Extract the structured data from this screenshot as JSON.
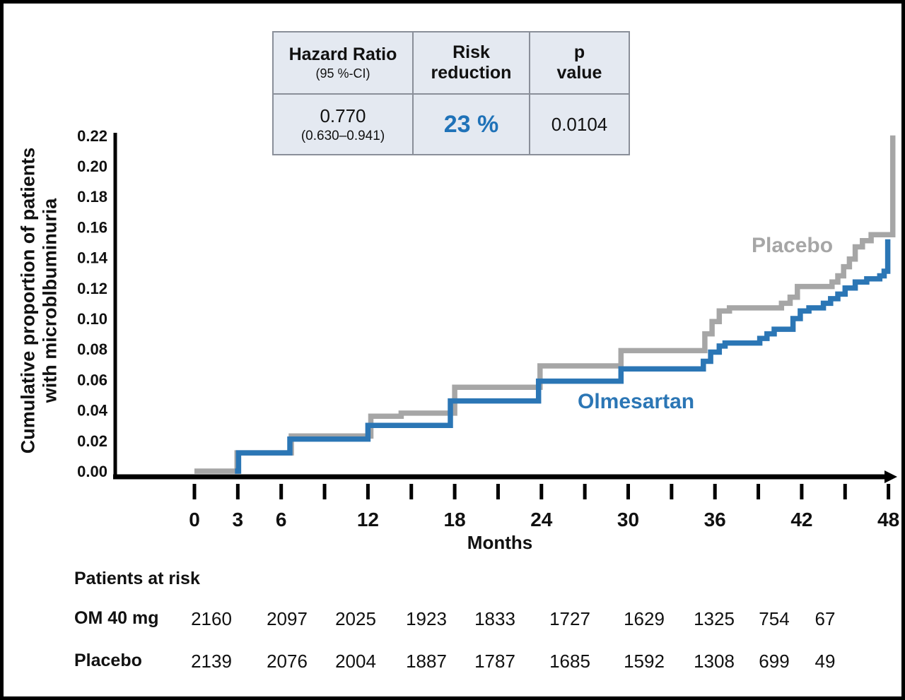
{
  "figure": {
    "background": "#ffffff",
    "border_color": "#000000"
  },
  "stats_table": {
    "headers": [
      {
        "line1": "Hazard Ratio",
        "line2": "(95 %-CI)"
      },
      {
        "line1": "Risk",
        "line2": "reduction"
      },
      {
        "line1": "p",
        "line2": "value"
      }
    ],
    "hazard_ratio": "0.770",
    "hazard_ratio_ci": "(0.630–0.941)",
    "risk_reduction": "23 %",
    "p_value": "0.0104",
    "accent_color": "#1f72b8",
    "cell_fill": "#e4e9f1",
    "border_color": "#8a8f99"
  },
  "chart_data": {
    "type": "line",
    "subtype": "kaplan-meier-cumulative-incidence-step-curves",
    "title": "",
    "xlabel": "Months",
    "ylabel_line1": "Cumulative proportion of patients",
    "ylabel_line2": "with microblbuminuria",
    "xlim": [
      0,
      48
    ],
    "ylim": [
      0,
      0.22
    ],
    "grid": false,
    "x_ticks": [
      0,
      3,
      6,
      9,
      12,
      15,
      18,
      21,
      24,
      27,
      30,
      33,
      36,
      39,
      42,
      45,
      48
    ],
    "x_tick_labels": [
      0,
      3,
      6,
      12,
      18,
      24,
      30,
      36,
      42,
      48
    ],
    "y_tick_labels": [
      "0.00",
      "0.02",
      "0.04",
      "0.06",
      "0.08",
      "0.10",
      "0.12",
      "0.14",
      "0.16",
      "0.18",
      "0.20",
      "0.22"
    ],
    "legend_position": "annotated-on-curves",
    "series": [
      {
        "name": "Placebo",
        "color": "#a6a6a6",
        "steps": [
          [
            0,
            0
          ],
          [
            2.95,
            0.012
          ],
          [
            6.7,
            0.023
          ],
          [
            12.2,
            0.036
          ],
          [
            14.3,
            0.038
          ],
          [
            18.0,
            0.055
          ],
          [
            23.9,
            0.069
          ],
          [
            29.5,
            0.079
          ],
          [
            35.3,
            0.09
          ],
          [
            35.8,
            0.098
          ],
          [
            36.3,
            0.105
          ],
          [
            37.0,
            0.107
          ],
          [
            40.6,
            0.11
          ],
          [
            41.2,
            0.114
          ],
          [
            41.7,
            0.121
          ],
          [
            44.1,
            0.124
          ],
          [
            44.5,
            0.128
          ],
          [
            44.9,
            0.134
          ],
          [
            45.3,
            0.139
          ],
          [
            45.7,
            0.147
          ],
          [
            46.2,
            0.151
          ],
          [
            46.8,
            0.155
          ],
          [
            48.3,
            0.22
          ]
        ]
      },
      {
        "name": "Olmesartan",
        "color": "#2b76b5",
        "steps": [
          [
            2.8,
            0
          ],
          [
            3.05,
            0.012
          ],
          [
            6.6,
            0.021
          ],
          [
            12.0,
            0.03
          ],
          [
            17.7,
            0.046
          ],
          [
            23.8,
            0.059
          ],
          [
            29.5,
            0.067
          ],
          [
            35.2,
            0.072
          ],
          [
            35.7,
            0.078
          ],
          [
            36.3,
            0.082
          ],
          [
            36.7,
            0.084
          ],
          [
            39.1,
            0.087
          ],
          [
            39.6,
            0.09
          ],
          [
            40.1,
            0.093
          ],
          [
            41.4,
            0.1
          ],
          [
            41.9,
            0.105
          ],
          [
            42.5,
            0.107
          ],
          [
            43.5,
            0.11
          ],
          [
            44.0,
            0.113
          ],
          [
            44.5,
            0.116
          ],
          [
            45.0,
            0.12
          ],
          [
            45.7,
            0.124
          ],
          [
            46.5,
            0.126
          ],
          [
            47.4,
            0.128
          ],
          [
            47.7,
            0.131
          ],
          [
            47.95,
            0.152
          ]
        ]
      }
    ]
  },
  "risk_table": {
    "title": "Patients at risk",
    "rows": [
      {
        "label": "OM 40 mg",
        "values": [
          "2160",
          "2097",
          "2025",
          "1923",
          "1833",
          "1727",
          "1629",
          "1325",
          "754",
          "67"
        ]
      },
      {
        "label": "Placebo",
        "values": [
          "2139",
          "2076",
          "2004",
          "1887",
          "1787",
          "1685",
          "1592",
          "1308",
          "699",
          "49"
        ]
      }
    ]
  }
}
